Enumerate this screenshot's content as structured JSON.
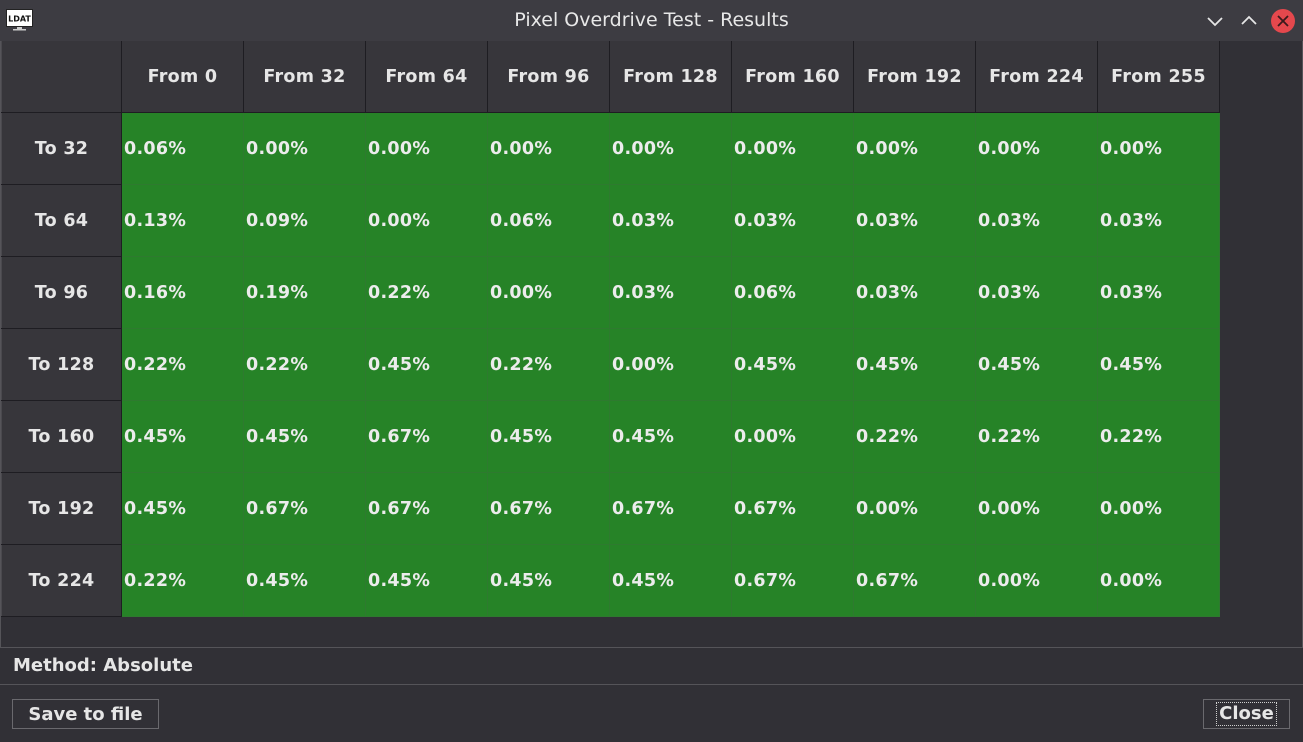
{
  "window": {
    "title": "Pixel Overdrive Test - Results",
    "icon": "ldat-app-icon"
  },
  "table": {
    "columns": [
      "From 0",
      "From 32",
      "From 64",
      "From 96",
      "From 128",
      "From 160",
      "From 192",
      "From 224",
      "From 255"
    ],
    "rows": [
      {
        "label": "To 32",
        "values": [
          "0.06%",
          "0.00%",
          "0.00%",
          "0.00%",
          "0.00%",
          "0.00%",
          "0.00%",
          "0.00%",
          "0.00%"
        ]
      },
      {
        "label": "To 64",
        "values": [
          "0.13%",
          "0.09%",
          "0.00%",
          "0.06%",
          "0.03%",
          "0.03%",
          "0.03%",
          "0.03%",
          "0.03%"
        ]
      },
      {
        "label": "To 96",
        "values": [
          "0.16%",
          "0.19%",
          "0.22%",
          "0.00%",
          "0.03%",
          "0.06%",
          "0.03%",
          "0.03%",
          "0.03%"
        ]
      },
      {
        "label": "To 128",
        "values": [
          "0.22%",
          "0.22%",
          "0.45%",
          "0.22%",
          "0.00%",
          "0.45%",
          "0.45%",
          "0.45%",
          "0.45%"
        ]
      },
      {
        "label": "To 160",
        "values": [
          "0.45%",
          "0.45%",
          "0.67%",
          "0.45%",
          "0.45%",
          "0.00%",
          "0.22%",
          "0.22%",
          "0.22%"
        ]
      },
      {
        "label": "To 192",
        "values": [
          "0.45%",
          "0.67%",
          "0.67%",
          "0.67%",
          "0.67%",
          "0.67%",
          "0.00%",
          "0.00%",
          "0.00%"
        ]
      },
      {
        "label": "To 224",
        "values": [
          "0.22%",
          "0.45%",
          "0.45%",
          "0.45%",
          "0.45%",
          "0.67%",
          "0.67%",
          "0.00%",
          "0.00%"
        ]
      }
    ],
    "cell_color": "#268327"
  },
  "status": {
    "method_text": "Method: Absolute"
  },
  "buttons": {
    "save_label": "Save to file",
    "close_label": "Close"
  },
  "colors": {
    "close_button": "#e5484d",
    "background": "#313036"
  }
}
